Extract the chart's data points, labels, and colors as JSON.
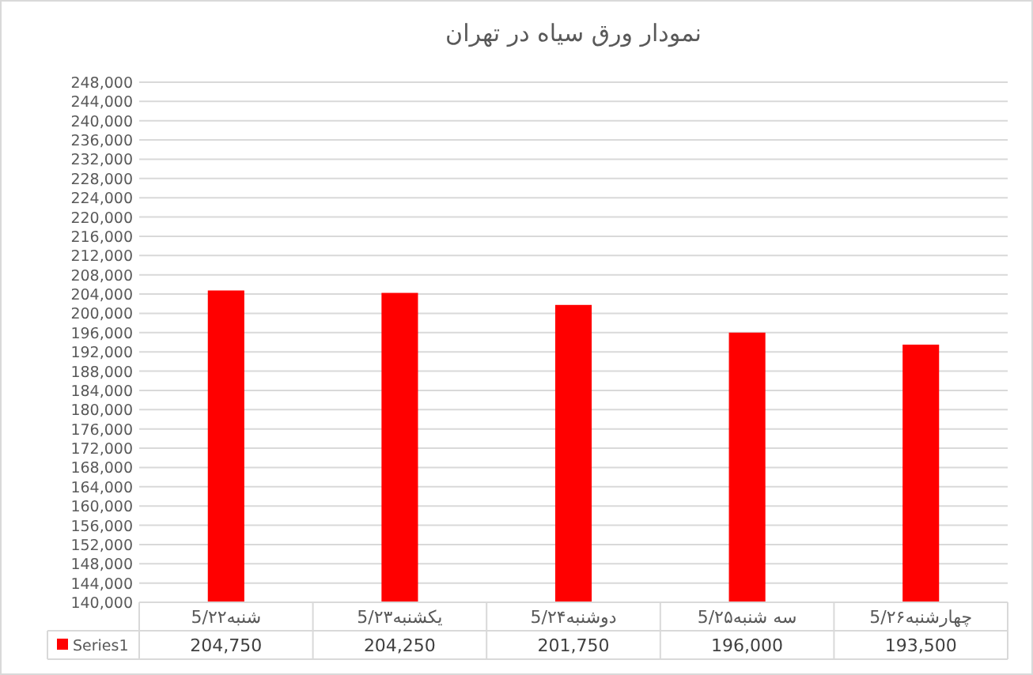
{
  "chart_data": {
    "type": "bar",
    "title": "نمودار ورق سیاه در تهران",
    "categories": [
      "شنبه5/۲۲",
      "یکشنبه5/۲۳",
      "دوشنبه5/۲۴",
      "سه شنبه5/۲۵",
      "چهارشنبه5/۲۶"
    ],
    "series": [
      {
        "name": "Series1",
        "color": "#ff0000",
        "values": [
          204750,
          204250,
          201750,
          196000,
          193500
        ],
        "value_labels": [
          "204,750",
          "204,250",
          "201,750",
          "196,000",
          "193,500"
        ]
      }
    ],
    "ylim": [
      140000,
      248000
    ],
    "yticks": [
      {
        "value": 140000,
        "label": "140,000"
      },
      {
        "value": 144000,
        "label": "144,000"
      },
      {
        "value": 148000,
        "label": "148,000"
      },
      {
        "value": 152000,
        "label": "152,000"
      },
      {
        "value": 156000,
        "label": "156,000"
      },
      {
        "value": 160000,
        "label": "160,000"
      },
      {
        "value": 164000,
        "label": "164,000"
      },
      {
        "value": 168000,
        "label": "168,000"
      },
      {
        "value": 172000,
        "label": "172,000"
      },
      {
        "value": 176000,
        "label": "176,000"
      },
      {
        "value": 180000,
        "label": "180,000"
      },
      {
        "value": 184000,
        "label": "184,000"
      },
      {
        "value": 188000,
        "label": "188,000"
      },
      {
        "value": 192000,
        "label": "192,000"
      },
      {
        "value": 196000,
        "label": "196,000"
      },
      {
        "value": 200000,
        "label": "200,000"
      },
      {
        "value": 204000,
        "label": "204,000"
      },
      {
        "value": 208000,
        "label": "208,000"
      },
      {
        "value": 212000,
        "label": "212,000"
      },
      {
        "value": 216000,
        "label": "216,000"
      },
      {
        "value": 220000,
        "label": "220,000"
      },
      {
        "value": 224000,
        "label": "224,000"
      },
      {
        "value": 228000,
        "label": "228,000"
      },
      {
        "value": 232000,
        "label": "232,000"
      },
      {
        "value": 236000,
        "label": "236,000"
      },
      {
        "value": 240000,
        "label": "240,000"
      },
      {
        "value": 244000,
        "label": "244,000"
      },
      {
        "value": 248000,
        "label": "248,000"
      }
    ],
    "grid": "y",
    "legend": "bottom left"
  }
}
